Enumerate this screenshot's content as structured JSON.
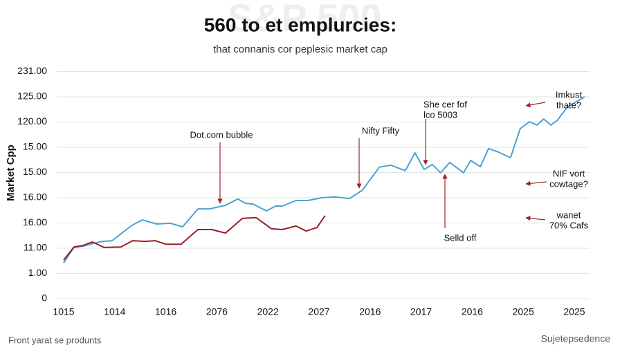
{
  "chart_data": {
    "type": "line",
    "watermark": "S&P 500",
    "title": "560 to et emplurcies:",
    "subtitle": "that connanis cor peplesic market cap",
    "ylabel": "Market Cpp",
    "footer_left": "Front yarat se produnts",
    "footer_right": "Sujetepsedence",
    "xlim": [
      0,
      10.3
    ],
    "ylim": [
      0,
      9
    ],
    "grid": true,
    "xticks": [
      {
        "value": 0,
        "label": "1015"
      },
      {
        "value": 1,
        "label": "1014"
      },
      {
        "value": 2,
        "label": "1016"
      },
      {
        "value": 3,
        "label": "2076"
      },
      {
        "value": 4,
        "label": "2022"
      },
      {
        "value": 5,
        "label": "2027"
      },
      {
        "value": 6,
        "label": "2016"
      },
      {
        "value": 7,
        "label": "2017"
      },
      {
        "value": 8,
        "label": "2016"
      },
      {
        "value": 9,
        "label": "2025"
      },
      {
        "value": 10,
        "label": "2025"
      }
    ],
    "yticks": [
      {
        "value": 0,
        "label": "0"
      },
      {
        "value": 1,
        "label": "1.00"
      },
      {
        "value": 2,
        "label": "11.00"
      },
      {
        "value": 3,
        "label": "16.00"
      },
      {
        "value": 4,
        "label": "16.00"
      },
      {
        "value": 5,
        "label": "15.00"
      },
      {
        "value": 6,
        "label": "15.00"
      },
      {
        "value": 7,
        "label": "120.00"
      },
      {
        "value": 8,
        "label": "125.00"
      },
      {
        "value": 9,
        "label": "231.00"
      }
    ],
    "series": [
      {
        "color": "#4aa3d0",
        "x": [
          0,
          0.2,
          0.38,
          0.58,
          0.76,
          0.95,
          1.33,
          1.54,
          1.82,
          2.09,
          2.33,
          2.63,
          2.86,
          3.17,
          3.41,
          3.56,
          3.71,
          3.97,
          4.15,
          4.28,
          4.55,
          4.78,
          5.05,
          5.31,
          5.6,
          5.85,
          6.18,
          6.41,
          6.69,
          6.88,
          7.06,
          7.22,
          7.38,
          7.56,
          7.83,
          7.97,
          8.16,
          8.32,
          8.51,
          8.75,
          8.94,
          9.12,
          9.27,
          9.4,
          9.54,
          9.67,
          9.86,
          10.2
        ],
        "values": [
          1.42,
          2.03,
          2.08,
          2.19,
          2.27,
          2.3,
          2.9,
          3.12,
          2.96,
          2.99,
          2.85,
          3.56,
          3.56,
          3.7,
          3.95,
          3.78,
          3.75,
          3.48,
          3.67,
          3.67,
          3.89,
          3.89,
          4.0,
          4.03,
          3.97,
          4.3,
          5.21,
          5.29,
          5.07,
          5.78,
          5.12,
          5.32,
          4.99,
          5.4,
          4.99,
          5.48,
          5.23,
          5.95,
          5.81,
          5.59,
          6.74,
          7.01,
          6.88,
          7.12,
          6.88,
          7.07,
          7.59,
          8.0
        ]
      },
      {
        "color": "#9b1c2a",
        "x": [
          0,
          0.2,
          0.38,
          0.56,
          0.79,
          1.12,
          1.35,
          1.6,
          1.79,
          2.0,
          2.3,
          2.63,
          2.9,
          3.17,
          3.5,
          3.77,
          4.07,
          4.28,
          4.55,
          4.75,
          4.96,
          5.12
        ],
        "values": [
          1.53,
          2.05,
          2.11,
          2.25,
          2.03,
          2.05,
          2.3,
          2.27,
          2.3,
          2.16,
          2.16,
          2.74,
          2.74,
          2.6,
          3.18,
          3.21,
          2.77,
          2.74,
          2.88,
          2.68,
          2.82,
          3.29
        ]
      }
    ],
    "annotations": [
      {
        "lines": [
          "Dot.com bubble"
        ]
      },
      {
        "lines": [
          "Nifty Fifty"
        ]
      },
      {
        "lines": [
          "She cer fof",
          "lco 5003"
        ]
      },
      {
        "lines": [
          "Selld off"
        ]
      },
      {
        "lines": [
          "Imkust",
          "thate?"
        ]
      },
      {
        "lines": [
          "NIF vort",
          "cowtage?"
        ]
      },
      {
        "lines": [
          "wanet",
          "70% Cafs"
        ]
      }
    ]
  }
}
